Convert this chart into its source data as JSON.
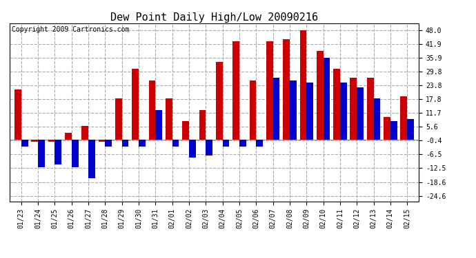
{
  "title": "Dew Point Daily High/Low 20090216",
  "copyright": "Copyright 2009 Cartronics.com",
  "dates": [
    "01/23",
    "01/24",
    "01/25",
    "01/26",
    "01/27",
    "01/28",
    "01/29",
    "01/30",
    "01/31",
    "02/01",
    "02/02",
    "02/03",
    "02/04",
    "02/05",
    "02/06",
    "02/07",
    "02/08",
    "02/09",
    "02/10",
    "02/11",
    "02/12",
    "02/13",
    "02/14",
    "02/15"
  ],
  "highs": [
    22,
    -1,
    -1,
    3,
    6,
    -1,
    18,
    31,
    26,
    18,
    8,
    13,
    34,
    43,
    26,
    43,
    44,
    48,
    39,
    31,
    27,
    27,
    10,
    19
  ],
  "lows": [
    -3,
    -12,
    -11,
    -12,
    -17,
    -3,
    -3,
    -3,
    13,
    -3,
    -8,
    -7,
    -3,
    -3,
    -3,
    27,
    26,
    25,
    36,
    25,
    23,
    18,
    8,
    9
  ],
  "high_color": "#cc0000",
  "low_color": "#0000cc",
  "bg_color": "#ffffff",
  "plot_bg_color": "#ffffff",
  "grid_color": "#aaaaaa",
  "yticks": [
    48.0,
    41.9,
    35.9,
    29.8,
    23.8,
    17.8,
    11.7,
    5.6,
    -0.4,
    -6.5,
    -12.5,
    -18.6,
    -24.6
  ],
  "ylim": [
    -27,
    51
  ],
  "bar_width": 0.4,
  "title_fontsize": 11,
  "copyright_fontsize": 7,
  "tick_fontsize": 7
}
